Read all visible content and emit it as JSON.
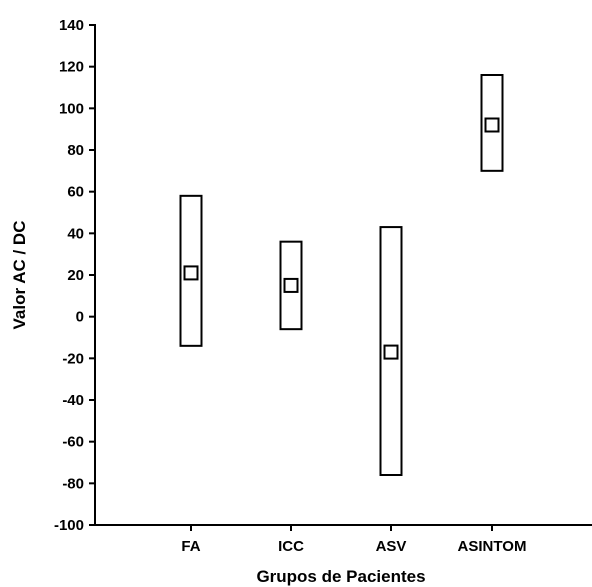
{
  "chart_data": {
    "type": "box",
    "title": "",
    "xlabel": "Grupos de Pacientes",
    "ylabel": "Valor AC / DC",
    "ylim": [
      -100,
      140
    ],
    "yticks": [
      "140",
      "120",
      "100",
      "80",
      "60",
      "40",
      "20",
      "0",
      "-20",
      "-40",
      "-60",
      "-80",
      "-100"
    ],
    "categories": [
      "FA",
      "ICC",
      "ASV",
      "ASINTOM"
    ],
    "series": [
      {
        "category": "FA",
        "mean": 21,
        "upper": 58,
        "lower": -14
      },
      {
        "category": "ICC",
        "mean": 15,
        "upper": 36,
        "lower": -6
      },
      {
        "category": "ASV",
        "mean": -17,
        "upper": 43,
        "lower": -76
      },
      {
        "category": "ASINTOM",
        "mean": 92,
        "upper": 116,
        "lower": 70
      }
    ],
    "grid": false
  }
}
